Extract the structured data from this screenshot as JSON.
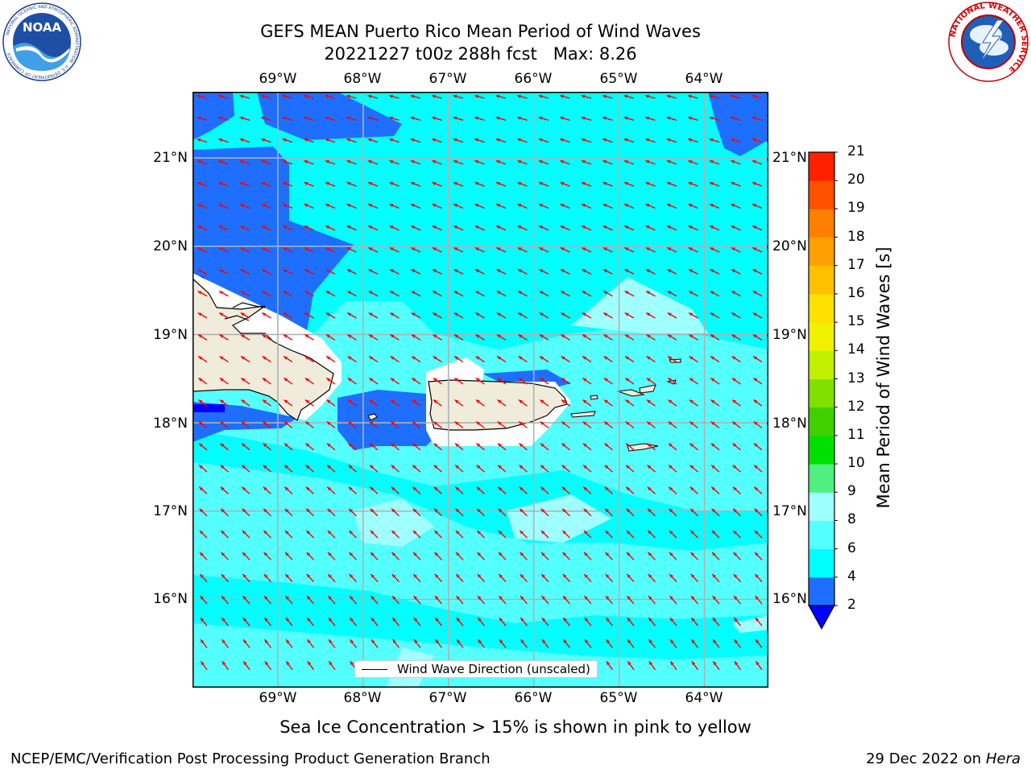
{
  "header": {
    "title_line1": "GEFS MEAN Puerto Rico Mean Period of Wind Waves",
    "title_line2": "20221227 t00z 288h fcst   Max: 8.26"
  },
  "logos": {
    "noaa": {
      "text": "NOAA",
      "ring_text": "NATIONAL OCEANIC AND ATMOSPHERIC ADMINISTRATION · U.S. DEPARTMENT OF COMMERCE"
    },
    "nws": {
      "ring_text": "NATIONAL WEATHER SERVICE"
    }
  },
  "map": {
    "lon_labels": [
      "69°W",
      "68°W",
      "67°W",
      "66°W",
      "65°W",
      "64°W"
    ],
    "lat_labels": [
      "21°N",
      "20°N",
      "19°N",
      "18°N",
      "17°N",
      "16°N"
    ],
    "lon_range": [
      -70.0,
      -63.25
    ],
    "lat_range": [
      15.0,
      21.75
    ],
    "gridlines": true,
    "arrow_color": "#ff0000",
    "land_color": "#efecdc",
    "legend_label": "Wind Wave Direction (unscaled)",
    "legend_position": "lower-center"
  },
  "colorbar": {
    "label": "Mean Period of Wind Waves [s]",
    "ticks": [
      "2",
      "4",
      "6",
      "8",
      "9",
      "10",
      "11",
      "12",
      "13",
      "14",
      "15",
      "16",
      "17",
      "18",
      "19",
      "20",
      "21"
    ],
    "colors": [
      "#1e6fff",
      "#00ffff",
      "#54ffff",
      "#a0ffff",
      "#50f080",
      "#00e000",
      "#40d000",
      "#80e000",
      "#c0f000",
      "#f0f000",
      "#ffe000",
      "#ffc000",
      "#ffa000",
      "#ff8000",
      "#ff5000",
      "#ff2000"
    ],
    "under_color": "#0000ff"
  },
  "caption": "Sea Ice Concentration > 15% is shown in pink to yellow",
  "footer": {
    "left": "NCEP/EMC/Verification Post Processing Product Generation Branch",
    "right_date": "29 Dec 2022 on",
    "right_host": "Hera"
  }
}
